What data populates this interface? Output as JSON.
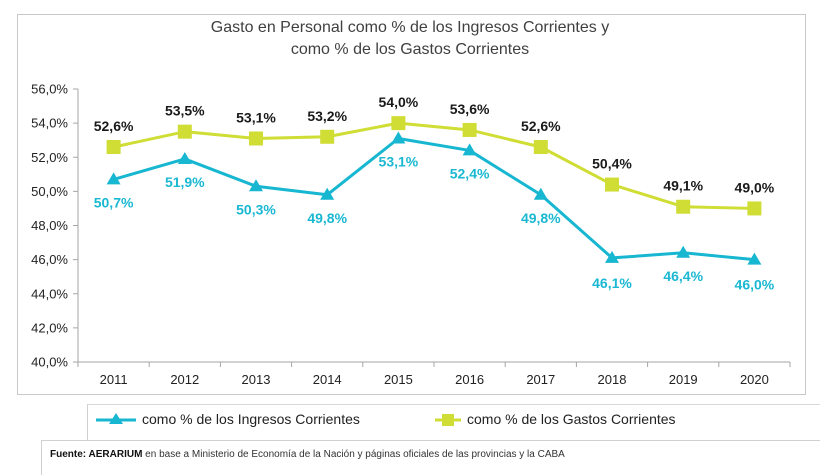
{
  "chart_data": {
    "type": "line",
    "title": "Gasto en Personal  como % de los Ingresos Corrientes y como % de los Gastos Corrientes",
    "title_lines": [
      "Gasto en Personal  como % de los Ingresos Corrientes y",
      "como % de los Gastos Corrientes"
    ],
    "xlabel": "",
    "ylabel": "",
    "categories": [
      "2011",
      "2012",
      "2013",
      "2014",
      "2015",
      "2016",
      "2017",
      "2018",
      "2019",
      "2020"
    ],
    "ylim": [
      40.0,
      56.0
    ],
    "yticks": [
      40.0,
      42.0,
      44.0,
      46.0,
      48.0,
      50.0,
      52.0,
      54.0,
      56.0
    ],
    "ytick_labels": [
      "40,0%",
      "42,0%",
      "44,0%",
      "46,0%",
      "48,0%",
      "50,0%",
      "52,0%",
      "54,0%",
      "56,0%"
    ],
    "grid": false,
    "legend_position": "bottom",
    "series": [
      {
        "name": "como % de los Ingresos Corrientes",
        "color": "#17b6d1",
        "marker": "triangle",
        "values": [
          50.7,
          51.9,
          50.3,
          49.8,
          53.1,
          52.4,
          49.8,
          46.1,
          46.4,
          46.0
        ],
        "labels": [
          "50,7%",
          "51,9%",
          "50,3%",
          "49,8%",
          "53,1%",
          "52,4%",
          "49,8%",
          "46,1%",
          "46,4%",
          "46,0%"
        ]
      },
      {
        "name": "como % de los Gastos Corrientes",
        "color": "#cfdd35",
        "marker": "square",
        "values": [
          52.6,
          53.5,
          53.1,
          53.2,
          54.0,
          53.6,
          52.6,
          50.4,
          49.1,
          49.0
        ],
        "labels": [
          "52,6%",
          "53,5%",
          "53,1%",
          "53,2%",
          "54,0%",
          "53,6%",
          "52,6%",
          "50,4%",
          "49,1%",
          "49,0%"
        ]
      }
    ]
  },
  "legend": {
    "items": [
      {
        "label": "como % de los Ingresos Corrientes",
        "icon": "triangle-marker-icon"
      },
      {
        "label": "como % de los Gastos Corrientes",
        "icon": "square-marker-icon"
      }
    ]
  },
  "source": {
    "prefix": "Fuente: AERARIUM",
    "text": " en base a Ministerio de Economía de la Nación y páginas oficiales de las provincias y la CABA"
  }
}
